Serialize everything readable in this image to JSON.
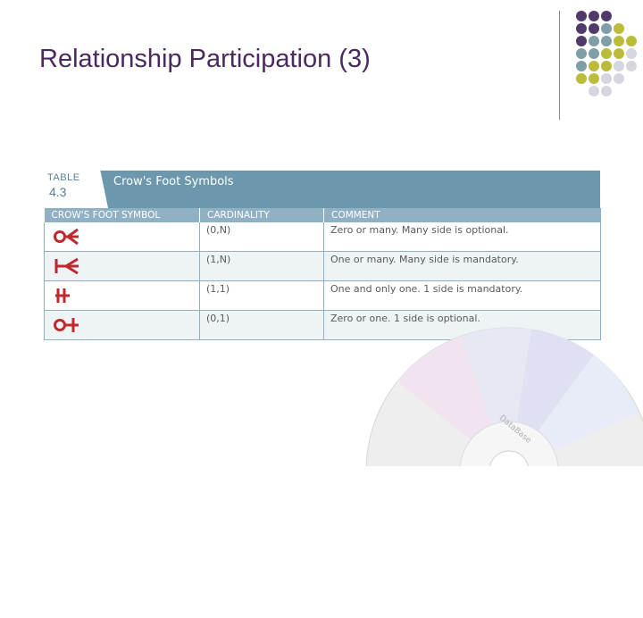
{
  "slide": {
    "title": "Relationship Participation (3)"
  },
  "table": {
    "tab_word": "TABLE",
    "tab_number": "4.3",
    "title": "Crow's Foot Symbols",
    "columns": [
      "CROW'S FOOT SYMBOL",
      "CARDINALITY",
      "COMMENT"
    ],
    "rows": [
      {
        "symbol_icon": "zero-or-many-crows-foot-icon",
        "cardinality": "(0,N)",
        "comment": "Zero or many. Many side is optional."
      },
      {
        "symbol_icon": "one-or-many-crows-foot-icon",
        "cardinality": "(1,N)",
        "comment": "One or many. Many side is mandatory."
      },
      {
        "symbol_icon": "one-and-only-one-crows-foot-icon",
        "cardinality": "(1,1)",
        "comment": "One and only one. 1 side is mandatory."
      },
      {
        "symbol_icon": "zero-or-one-crows-foot-icon",
        "cardinality": "(0,1)",
        "comment": "Zero or one. 1 side is optional."
      }
    ]
  },
  "decoration": {
    "dot_colors": {
      "purple": "#4f3a6b",
      "teal": "#7f9ea7",
      "olive": "#bcbc3a",
      "light": "#d6d6e0"
    },
    "symbol_color": "#c0282e",
    "disc_label": "DataBase"
  }
}
